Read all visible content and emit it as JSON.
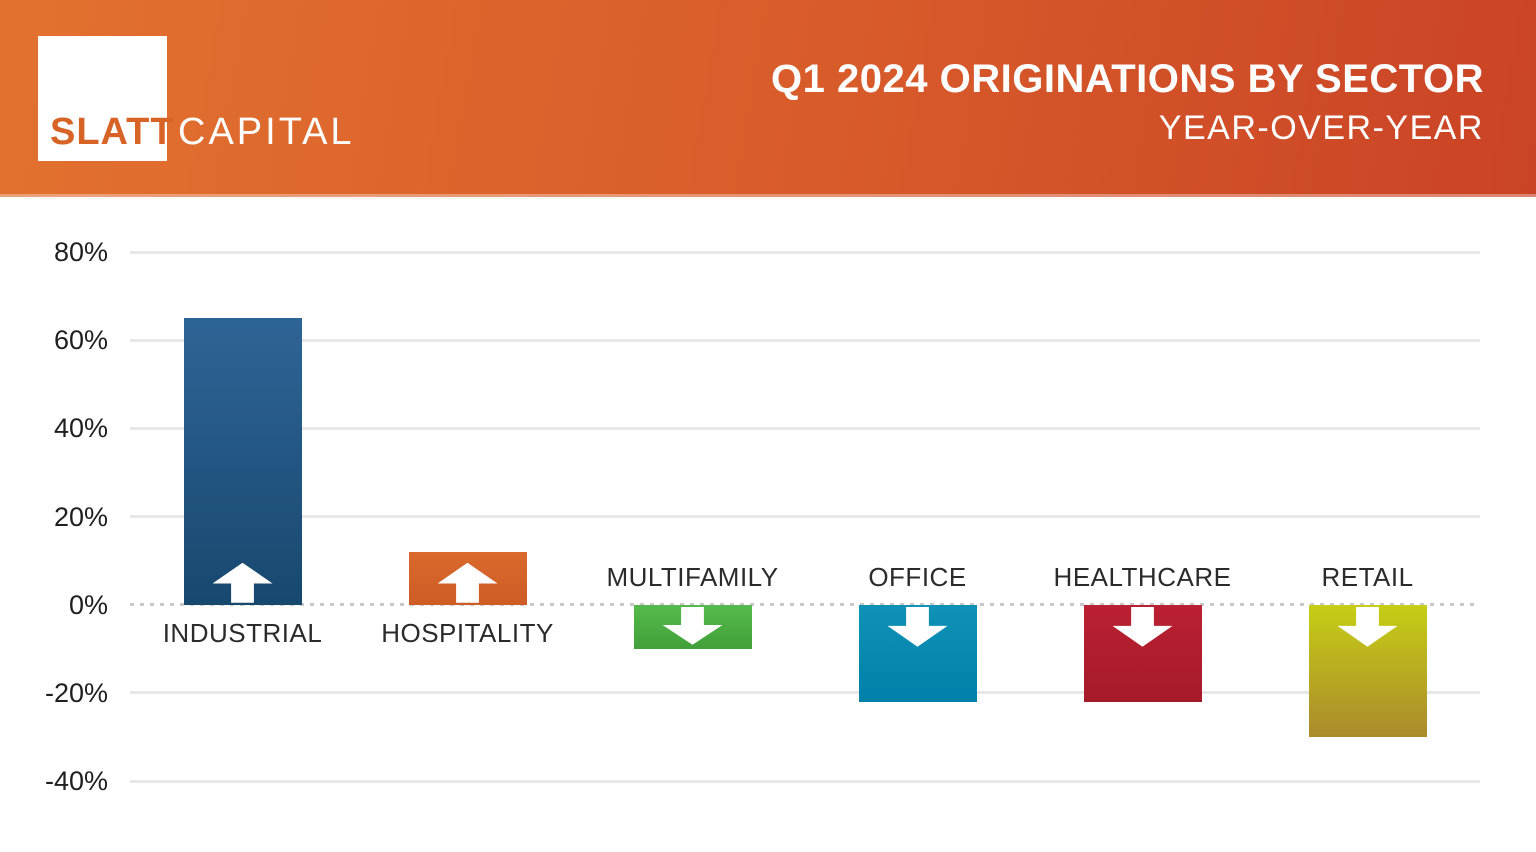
{
  "header": {
    "logo_primary": "SLATT",
    "logo_secondary": "CAPITAL",
    "title": "Q1 2024 ORIGINATIONS BY SECTOR",
    "subtitle": "YEAR-OVER-YEAR",
    "gradient_left": "#e2712f",
    "gradient_right": "#ca4326"
  },
  "chart_data": {
    "type": "bar",
    "title": "Q1 2024 ORIGINATIONS BY SECTOR",
    "subtitle": "YEAR-OVER-YEAR",
    "categories": [
      "INDUSTRIAL",
      "HOSPITALITY",
      "MULTIFAMILY",
      "OFFICE",
      "HEALTHCARE",
      "RETAIL"
    ],
    "values": [
      65,
      12,
      -10,
      -22,
      -22,
      -30
    ],
    "unit": "%",
    "direction_arrows": [
      "up",
      "up",
      "down",
      "down",
      "down",
      "down"
    ],
    "bar_colors": [
      {
        "top": "#2f6496",
        "bottom": "#17486e"
      },
      {
        "top": "#d9692c",
        "bottom": "#cd5d26"
      },
      {
        "top": "#55ba4b",
        "bottom": "#42a03a"
      },
      {
        "top": "#1092b8",
        "bottom": "#0080a8"
      },
      {
        "top": "#ba2132",
        "bottom": "#a51a29"
      },
      {
        "top": "#c6ce15",
        "bottom": "#ab8a2c"
      }
    ],
    "ylim": [
      -40,
      80
    ],
    "yticks": [
      80,
      60,
      40,
      20,
      0,
      -20,
      -40
    ],
    "ytick_labels": [
      "80%",
      "60%",
      "40%",
      "20%",
      "0%",
      "-20%",
      "-40%"
    ],
    "grid": "horizontal",
    "zero_line_style": "dotted",
    "legend": "none",
    "gridline_color": "#e7e7e7",
    "zero_line_color": "#c8c8c8",
    "label_color": "#2b2b2b"
  }
}
